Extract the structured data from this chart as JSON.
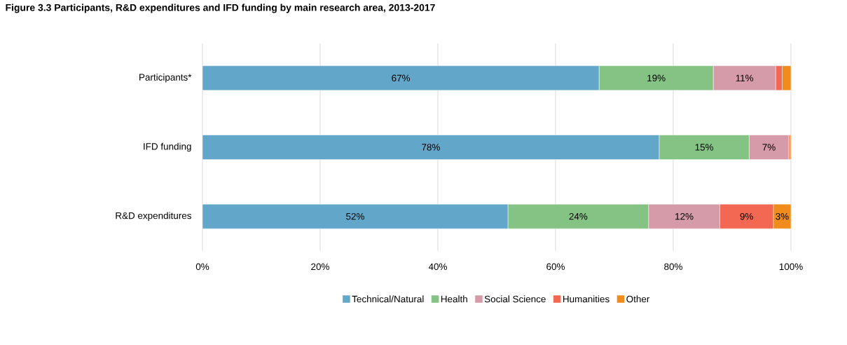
{
  "chart_data": {
    "type": "bar",
    "orientation": "horizontal",
    "stacked": true,
    "title": "Figure 3.3 Participants, R&D expenditures and IFD funding by main research area, 2013-2017",
    "categories": [
      "Participants*",
      "IFD funding",
      "R&D expenditures"
    ],
    "series": [
      {
        "name": "Technical/Natural",
        "color": "#62a7c9",
        "values": [
          67.4,
          77.6,
          51.9
        ],
        "value_labels": [
          "67%",
          "78%",
          "52%"
        ]
      },
      {
        "name": "Health",
        "color": "#84c384",
        "values": [
          19.4,
          15.3,
          23.9
        ],
        "value_labels": [
          "19%",
          "15%",
          "24%"
        ]
      },
      {
        "name": "Social Science",
        "color": "#d59ba8",
        "values": [
          10.6,
          6.7,
          12.1
        ],
        "value_labels": [
          "11%",
          "7%",
          "12%"
        ]
      },
      {
        "name": "Humanities",
        "color": "#f26852",
        "values": [
          1.1,
          0.2,
          9.1
        ],
        "value_labels": [
          null,
          null,
          "9%"
        ]
      },
      {
        "name": "Other",
        "color": "#f08c1b",
        "values": [
          1.5,
          0.2,
          3.0
        ],
        "value_labels": [
          null,
          null,
          "3%"
        ]
      }
    ],
    "xlim": [
      0,
      100
    ],
    "xticks": [
      {
        "value": 0,
        "label": "0%"
      },
      {
        "value": 20,
        "label": "20%"
      },
      {
        "value": 40,
        "label": "40%"
      },
      {
        "value": 60,
        "label": "60%"
      },
      {
        "value": 80,
        "label": "80%"
      },
      {
        "value": 100,
        "label": "100%"
      }
    ],
    "grid": "x",
    "legend": "bottom"
  }
}
